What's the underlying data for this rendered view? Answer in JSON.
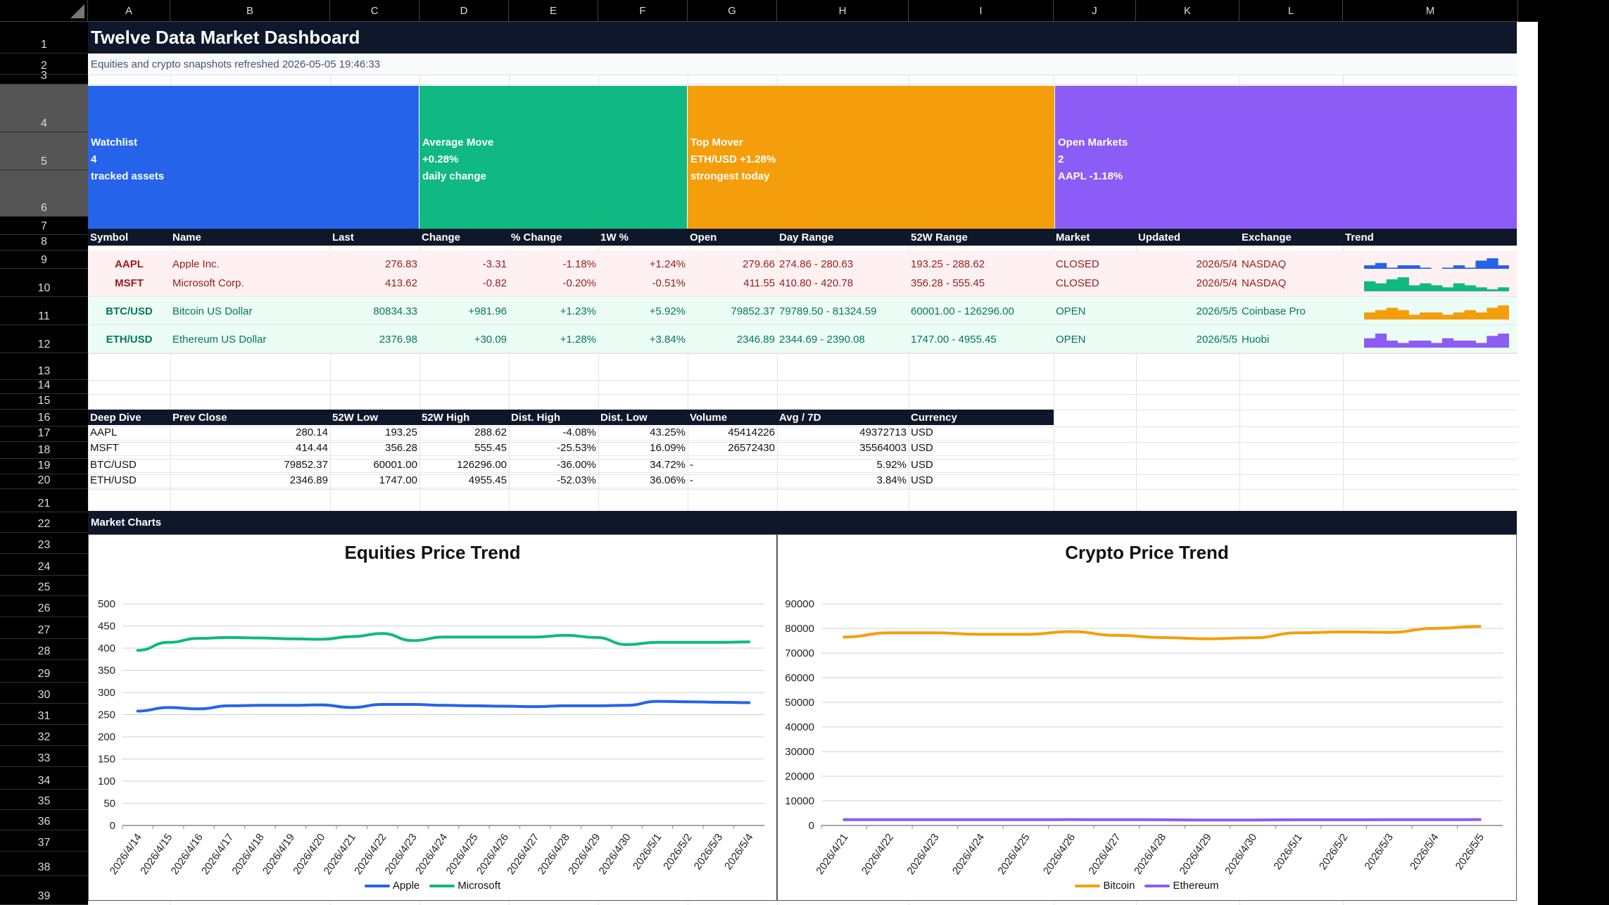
{
  "columns": [
    "A",
    "B",
    "C",
    "D",
    "E",
    "F",
    "G",
    "H",
    "I",
    "J",
    "K",
    "L",
    "M"
  ],
  "rows": [
    "1",
    "2",
    "3",
    "4",
    "5",
    "6",
    "7",
    "8",
    "9",
    "10",
    "11",
    "12",
    "13",
    "14",
    "15",
    "16",
    "17",
    "18",
    "19",
    "20",
    "21",
    "22",
    "23",
    "24",
    "25",
    "26",
    "27",
    "28",
    "29",
    "30",
    "31",
    "32",
    "33",
    "34",
    "35",
    "36",
    "37",
    "38",
    "39"
  ],
  "title": "Twelve Data Market Dashboard",
  "subtitle": "Equities and crypto snapshots refreshed 2026-05-05 19:46:33",
  "kpis": [
    {
      "label": "Watchlist",
      "value": "4",
      "note": "tracked assets",
      "color": "#2563eb"
    },
    {
      "label": "Average Move",
      "value": "+0.28%",
      "note": "daily change",
      "color": "#10b981"
    },
    {
      "label": "Top Mover",
      "value": "ETH/USD +1.28%",
      "note": "strongest today",
      "color": "#f59e0b"
    },
    {
      "label": "Open Markets",
      "value": "2",
      "note": "AAPL -1.18%",
      "color": "#8b5cf6"
    }
  ],
  "quote_table": {
    "headers": [
      "Symbol",
      "Name",
      "Last",
      "Change",
      "% Change",
      "1W %",
      "Open",
      "Day Range",
      "52W Range",
      "Market",
      "Updated",
      "Exchange",
      "Trend"
    ],
    "rows": [
      {
        "symbol": "AAPL",
        "name": "Apple Inc.",
        "last": "276.83",
        "change": "-3.31",
        "pct": "-1.18%",
        "w1": "+1.24%",
        "open": "279.66",
        "day": "274.86 - 280.63",
        "w52": "193.25 - 288.62",
        "market": "CLOSED",
        "updated": "2026/5/4",
        "exchange": "NASDAQ",
        "trend": [
          3,
          4,
          2,
          3,
          3,
          2,
          1,
          2,
          3,
          2,
          5,
          6,
          3
        ],
        "spark_color": "#2563eb"
      },
      {
        "symbol": "MSFT",
        "name": "Microsoft Corp.",
        "last": "413.62",
        "change": "-0.82",
        "pct": "-0.20%",
        "w1": "-0.51%",
        "open": "411.55",
        "day": "410.80 - 420.78",
        "w52": "356.28 - 555.45",
        "market": "CLOSED",
        "updated": "2026/5/4",
        "exchange": "NASDAQ",
        "trend": [
          5,
          4,
          6,
          7,
          3,
          4,
          3,
          2,
          4,
          3,
          2,
          1,
          2
        ],
        "spark_color": "#10b981"
      },
      {
        "symbol": "BTC/USD",
        "name": "Bitcoin US Dollar",
        "last": "80834.33",
        "change": "+981.96",
        "pct": "+1.23%",
        "w1": "+5.92%",
        "open": "79852.37",
        "day": "79789.50 - 81324.59",
        "w52": "60001.00 - 126296.00",
        "market": "OPEN",
        "updated": "2026/5/5",
        "exchange": "Coinbase Pro",
        "trend": [
          3,
          4,
          5,
          4,
          2,
          3,
          3,
          2,
          3,
          4,
          3,
          5,
          6
        ],
        "spark_color": "#f59e0b"
      },
      {
        "symbol": "ETH/USD",
        "name": "Ethereum US Dollar",
        "last": "2376.98",
        "change": "+30.09",
        "pct": "+1.28%",
        "w1": "+3.84%",
        "open": "2346.89",
        "day": "2344.69 - 2390.08",
        "w52": "1747.00 - 4955.45",
        "market": "OPEN",
        "updated": "2026/5/5",
        "exchange": "Huobi",
        "trend": [
          4,
          6,
          3,
          2,
          3,
          3,
          2,
          4,
          3,
          3,
          2,
          5,
          6
        ],
        "spark_color": "#8b5cf6"
      }
    ]
  },
  "deep_dive": {
    "headers": [
      "Deep Dive",
      "Prev Close",
      "52W Low",
      "52W High",
      "Dist. High",
      "Dist. Low",
      "Volume",
      "Avg / 7D",
      "Currency"
    ],
    "rows": [
      [
        "AAPL",
        "280.14",
        "193.25",
        "288.62",
        "-4.08%",
        "43.25%",
        "45414226",
        "49372713",
        "USD"
      ],
      [
        "MSFT",
        "414.44",
        "356.28",
        "555.45",
        "-25.53%",
        "16.09%",
        "26572430",
        "35564003",
        "USD"
      ],
      [
        "BTC/USD",
        "79852.37",
        "60001.00",
        "126296.00",
        "-36.00%",
        "34.72%",
        "-",
        "5.92%",
        "USD"
      ],
      [
        "ETH/USD",
        "2346.89",
        "1747.00",
        "4955.45",
        "-52.03%",
        "36.06%",
        "-",
        "3.84%",
        "USD"
      ]
    ]
  },
  "market_charts_label": "Market Charts",
  "chart_data": [
    {
      "type": "line",
      "title": "Equities Price Trend",
      "x": [
        "2026/4/14",
        "2026/4/15",
        "2026/4/16",
        "2026/4/17",
        "2026/4/18",
        "2026/4/19",
        "2026/4/20",
        "2026/4/21",
        "2026/4/22",
        "2026/4/23",
        "2026/4/24",
        "2026/4/25",
        "2026/4/26",
        "2026/4/27",
        "2026/4/28",
        "2026/4/29",
        "2026/4/30",
        "2026/5/1",
        "2026/5/2",
        "2026/5/3",
        "2026/5/4"
      ],
      "ylim": [
        0,
        500
      ],
      "yticks": [
        0,
        50,
        100,
        150,
        200,
        250,
        300,
        350,
        400,
        450,
        500
      ],
      "series": [
        {
          "name": "Apple",
          "color": "#2563eb",
          "values": [
            258,
            266,
            263,
            270,
            271,
            271,
            272,
            266,
            273,
            273,
            271,
            270,
            269,
            268,
            270,
            270,
            271,
            280,
            279,
            278,
            277
          ]
        },
        {
          "name": "Microsoft",
          "color": "#10b981",
          "values": [
            395,
            413,
            422,
            424,
            423,
            421,
            420,
            426,
            433,
            417,
            425,
            425,
            425,
            425,
            429,
            424,
            408,
            413,
            413,
            413,
            414
          ]
        }
      ],
      "legend": "bottom",
      "grid": true
    },
    {
      "type": "line",
      "title": "Crypto Price Trend",
      "x": [
        "2026/4/21",
        "2026/4/22",
        "2026/4/23",
        "2026/4/24",
        "2026/4/25",
        "2026/4/26",
        "2026/4/27",
        "2026/4/28",
        "2026/4/29",
        "2026/4/30",
        "2026/5/1",
        "2026/5/2",
        "2026/5/3",
        "2026/5/4",
        "2026/5/5"
      ],
      "ylim": [
        0,
        90000
      ],
      "yticks": [
        0,
        10000,
        20000,
        30000,
        40000,
        50000,
        60000,
        70000,
        80000,
        90000
      ],
      "series": [
        {
          "name": "Bitcoin",
          "color": "#f59e0b",
          "values": [
            76500,
            78200,
            78200,
            77600,
            77600,
            78700,
            77200,
            76300,
            75800,
            76200,
            78200,
            78600,
            78400,
            80000,
            80834
          ]
        },
        {
          "name": "Ethereum",
          "color": "#8b5cf6",
          "values": [
            2350,
            2360,
            2360,
            2350,
            2340,
            2380,
            2360,
            2330,
            2200,
            2230,
            2320,
            2330,
            2340,
            2340,
            2377
          ]
        }
      ],
      "legend": "bottom",
      "grid": true
    }
  ]
}
